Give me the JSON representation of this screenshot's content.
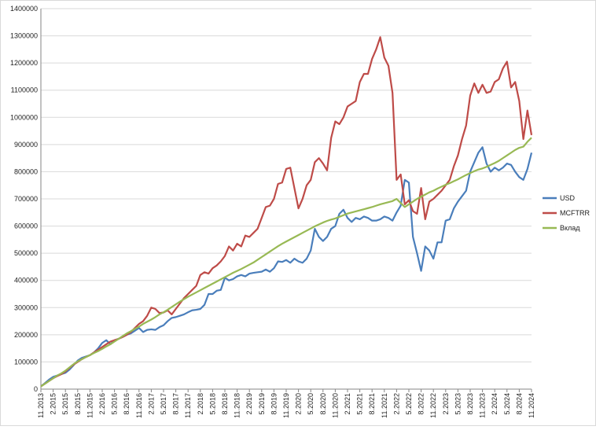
{
  "chart_data": {
    "type": "line",
    "categories": [
      "11.2013",
      null,
      null,
      "2.2015",
      null,
      null,
      "5.2015",
      null,
      null,
      "8.2015",
      null,
      null,
      "11.2015",
      null,
      null,
      "2.2016",
      null,
      null,
      "5.2016",
      null,
      null,
      "8.2016",
      null,
      null,
      "11.2016",
      null,
      null,
      "2.2017",
      null,
      null,
      "5.2017",
      null,
      null,
      "8.2017",
      null,
      null,
      "11.2017",
      null,
      null,
      "2.2018",
      null,
      null,
      "5.2018",
      null,
      null,
      "8.2018",
      null,
      null,
      "11.2018",
      null,
      null,
      "2.2019",
      null,
      null,
      "5.2019",
      null,
      null,
      "8.2019",
      null,
      null,
      "11.2019",
      null,
      null,
      "2.2020",
      null,
      null,
      "5.2020",
      null,
      null,
      "8.2020",
      null,
      null,
      "11.2020",
      null,
      null,
      "2.2021",
      null,
      null,
      "5.2021",
      null,
      null,
      "8.2021",
      null,
      null,
      "11.2021",
      null,
      null,
      "2.2022",
      null,
      null,
      "5.2022",
      null,
      null,
      "8.2022",
      null,
      null,
      "11.2022",
      null,
      null,
      "2.2023",
      null,
      null,
      "5.2023",
      null,
      null,
      "8.2023",
      null,
      null,
      "11.2023",
      null,
      null,
      "2.2024",
      null,
      null,
      "5.2024",
      null,
      null,
      "8.2024",
      null,
      null,
      "11.2024"
    ],
    "series": [
      {
        "name": "USD",
        "color": "#4a7ebb",
        "values": [
          10000,
          22000,
          35000,
          45000,
          50000,
          55000,
          60000,
          72000,
          88000,
          105000,
          115000,
          120000,
          125000,
          135000,
          150000,
          170000,
          180000,
          165000,
          180000,
          185000,
          192000,
          200000,
          205000,
          215000,
          225000,
          210000,
          218000,
          220000,
          218000,
          228000,
          235000,
          250000,
          262000,
          265000,
          270000,
          275000,
          283000,
          290000,
          292000,
          295000,
          310000,
          350000,
          350000,
          362000,
          365000,
          410000,
          400000,
          405000,
          415000,
          420000,
          415000,
          425000,
          428000,
          430000,
          432000,
          440000,
          432000,
          445000,
          470000,
          468000,
          475000,
          465000,
          480000,
          470000,
          465000,
          480000,
          510000,
          590000,
          560000,
          545000,
          560000,
          590000,
          600000,
          645000,
          660000,
          630000,
          615000,
          630000,
          625000,
          635000,
          630000,
          620000,
          620000,
          625000,
          635000,
          630000,
          620000,
          650000,
          675000,
          770000,
          760000,
          560000,
          500000,
          435000,
          525000,
          510000,
          480000,
          540000,
          540000,
          620000,
          625000,
          665000,
          690000,
          710000,
          730000,
          800000,
          835000,
          870000,
          890000,
          830000,
          800000,
          815000,
          805000,
          815000,
          830000,
          825000,
          800000,
          780000,
          770000,
          810000,
          870000
        ]
      },
      {
        "name": "MCFTRR",
        "color": "#be4b48",
        "values": [
          10000,
          20000,
          30000,
          40000,
          48000,
          55000,
          65000,
          78000,
          90000,
          100000,
          110000,
          118000,
          125000,
          135000,
          145000,
          155000,
          165000,
          175000,
          180000,
          185000,
          192000,
          200000,
          210000,
          225000,
          240000,
          250000,
          270000,
          300000,
          295000,
          280000,
          282000,
          290000,
          275000,
          295000,
          315000,
          335000,
          350000,
          365000,
          380000,
          420000,
          430000,
          425000,
          445000,
          455000,
          470000,
          490000,
          525000,
          510000,
          535000,
          525000,
          565000,
          560000,
          575000,
          590000,
          630000,
          670000,
          675000,
          700000,
          755000,
          760000,
          810000,
          815000,
          740000,
          665000,
          700000,
          750000,
          770000,
          835000,
          850000,
          830000,
          805000,
          925000,
          985000,
          975000,
          1000000,
          1040000,
          1050000,
          1060000,
          1130000,
          1160000,
          1160000,
          1215000,
          1250000,
          1295000,
          1220000,
          1190000,
          1090000,
          770000,
          790000,
          680000,
          695000,
          655000,
          645000,
          740000,
          625000,
          690000,
          700000,
          715000,
          730000,
          750000,
          770000,
          820000,
          860000,
          920000,
          970000,
          1080000,
          1125000,
          1090000,
          1120000,
          1090000,
          1095000,
          1130000,
          1140000,
          1180000,
          1205000,
          1110000,
          1130000,
          1060000,
          920000,
          1025000,
          935000
        ]
      },
      {
        "name": "Вклад",
        "color": "#98b954",
        "values": [
          10000,
          20000,
          30000,
          40000,
          50000,
          58000,
          68000,
          80000,
          92000,
          102000,
          110000,
          118000,
          125000,
          133000,
          140000,
          148000,
          157000,
          165000,
          175000,
          185000,
          195000,
          205000,
          213000,
          222000,
          230000,
          240000,
          248000,
          256000,
          265000,
          275000,
          283000,
          292000,
          302000,
          312000,
          322000,
          331000,
          340000,
          348000,
          356000,
          364000,
          372000,
          380000,
          388000,
          396000,
          404000,
          412000,
          420000,
          428000,
          435000,
          442000,
          450000,
          458000,
          466000,
          476000,
          486000,
          496000,
          506000,
          516000,
          526000,
          535000,
          543000,
          551000,
          559000,
          567000,
          575000,
          583000,
          591000,
          599000,
          606000,
          613000,
          619000,
          624000,
          628000,
          634000,
          640000,
          646000,
          650000,
          654000,
          658000,
          662000,
          666000,
          670000,
          675000,
          680000,
          684000,
          688000,
          692000,
          700000,
          685000,
          670000,
          680000,
          690000,
          700000,
          708000,
          716000,
          724000,
          730000,
          738000,
          745000,
          752000,
          758000,
          765000,
          772000,
          780000,
          788000,
          795000,
          802000,
          808000,
          812000,
          818000,
          825000,
          832000,
          840000,
          850000,
          860000,
          870000,
          880000,
          888000,
          892000,
          910000,
          925000
        ]
      }
    ],
    "ylim": [
      0,
      1400000
    ],
    "yticks": [
      0,
      100000,
      200000,
      300000,
      400000,
      500000,
      600000,
      700000,
      800000,
      900000,
      1000000,
      1100000,
      1200000,
      1300000,
      1400000
    ],
    "grid": true,
    "legend": "right"
  }
}
